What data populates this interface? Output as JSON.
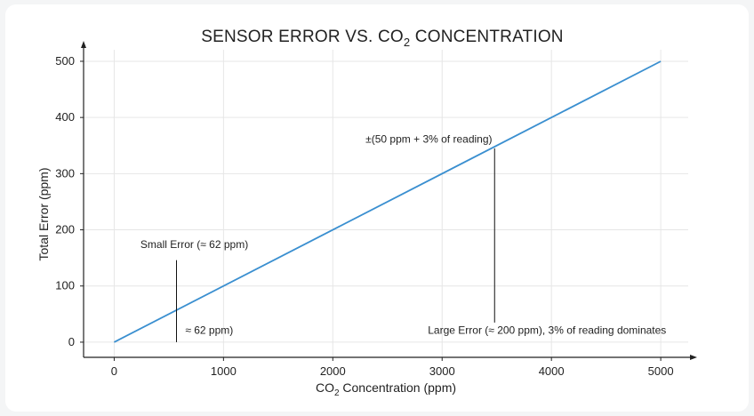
{
  "chart_data": {
    "type": "line",
    "title": {
      "main": "SENSOR ERROR VS. CO",
      "sub": "2",
      "rest": " CONCENTRATION"
    },
    "xlabel": {
      "pre": "CO",
      "sub": "2",
      "post": " Concentration (ppm)"
    },
    "ylabel": "Total Error (ppm)",
    "xlim": [
      -280,
      5300
    ],
    "ylim": [
      -27,
      530
    ],
    "x_ticks": [
      0,
      1000,
      2000,
      3000,
      4000,
      5000
    ],
    "y_ticks": [
      0,
      100,
      200,
      300,
      400,
      500
    ],
    "grid": true,
    "line_color": "#3a8fd0",
    "series": [
      {
        "x": [
          0,
          5000
        ],
        "y": [
          0,
          500
        ]
      }
    ],
    "annotations": [
      {
        "text": "±(50 ppm + 3% of reading)",
        "x": 3480,
        "y": 350,
        "text_x": 2300,
        "text_y": 355,
        "line_from_y": 35,
        "line_to_y": 345
      },
      {
        "text": "Small Error (≈ 62 ppm)",
        "x": 570,
        "y": 146,
        "text_x": 240,
        "text_y": 168
      },
      {
        "text": "≈ 62 ppm)",
        "x": 570,
        "y": 0,
        "text_x": 650,
        "text_y": 15,
        "line_from_y": 0,
        "line_to_y": 146
      },
      {
        "text": "Large Error (≈ 200 ppm), 3% of reading dominates",
        "x": 3480,
        "y": 35,
        "text_x": 2870,
        "text_y": 15
      }
    ]
  }
}
